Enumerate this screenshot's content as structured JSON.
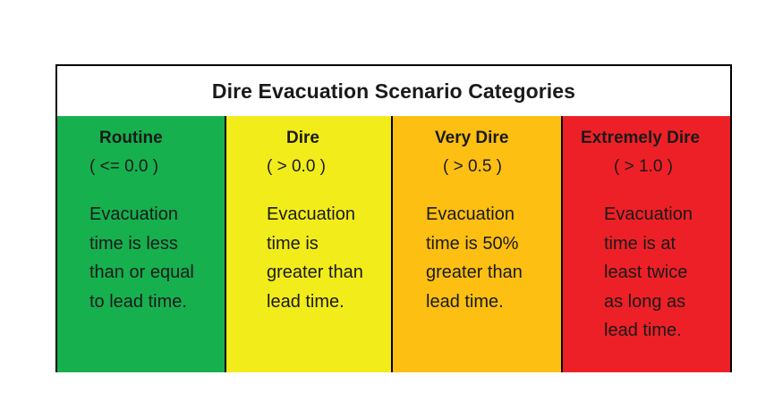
{
  "title": "Dire Evacuation Scenario Categories",
  "categories": [
    {
      "name": "Routine",
      "threshold": "( <= 0.0 )",
      "description_lines": [
        "Evacuation",
        "time is less",
        "than or equal",
        "to lead time."
      ],
      "color": "#16b04f"
    },
    {
      "name": "Dire",
      "threshold": "( > 0.0 )",
      "description_lines": [
        "Evacuation",
        "time is",
        "greater than",
        "lead time."
      ],
      "color": "#f2ec1a"
    },
    {
      "name": "Very Dire",
      "threshold": "( > 0.5 )",
      "description_lines": [
        "Evacuation",
        "time is 50%",
        "greater than",
        "lead time."
      ],
      "color": "#fcbf12"
    },
    {
      "name": "Extremely Dire",
      "threshold": "( > 1.0 )",
      "description_lines": [
        "Evacuation",
        "time is at",
        "least twice",
        "as long as",
        "lead time."
      ],
      "color": "#ee2027"
    }
  ]
}
